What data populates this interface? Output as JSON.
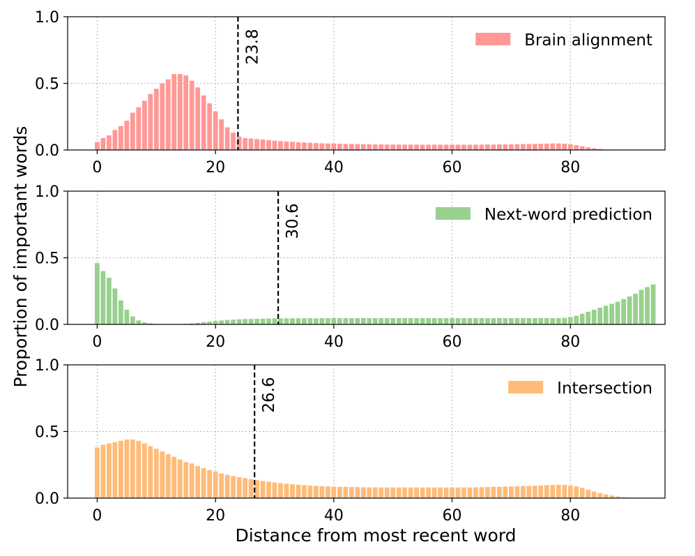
{
  "figure": {
    "ylabel": "Proportion of important words",
    "xlabel": "Distance from most recent word"
  },
  "chart_data": [
    {
      "type": "bar",
      "legend": "Brain alignment",
      "legend_position": "top-right",
      "color": "#ff9896",
      "grid": true,
      "xlim": [
        -5,
        96
      ],
      "ylim": [
        0,
        1
      ],
      "xticks": [
        0,
        20,
        40,
        60,
        80
      ],
      "yticks": [
        "0.0",
        "0.5",
        "1.0"
      ],
      "vline": {
        "x": 23.8,
        "label": "23.8"
      },
      "x": [
        0,
        1,
        2,
        3,
        4,
        5,
        6,
        7,
        8,
        9,
        10,
        11,
        12,
        13,
        14,
        15,
        16,
        17,
        18,
        19,
        20,
        21,
        22,
        23,
        24,
        25,
        26,
        27,
        28,
        29,
        30,
        31,
        32,
        33,
        34,
        35,
        36,
        37,
        38,
        39,
        40,
        41,
        42,
        43,
        44,
        45,
        46,
        47,
        48,
        49,
        50,
        51,
        52,
        53,
        54,
        55,
        56,
        57,
        58,
        59,
        60,
        61,
        62,
        63,
        64,
        65,
        66,
        67,
        68,
        69,
        70,
        71,
        72,
        73,
        74,
        75,
        76,
        77,
        78,
        79,
        80,
        81,
        82,
        83,
        84,
        85,
        86,
        87,
        88,
        89,
        90,
        91,
        92,
        93,
        94
      ],
      "values": [
        0.06,
        0.09,
        0.11,
        0.15,
        0.18,
        0.22,
        0.28,
        0.32,
        0.37,
        0.42,
        0.46,
        0.5,
        0.53,
        0.57,
        0.57,
        0.56,
        0.52,
        0.47,
        0.41,
        0.35,
        0.29,
        0.23,
        0.17,
        0.13,
        0.1,
        0.09,
        0.086,
        0.082,
        0.078,
        0.074,
        0.07,
        0.067,
        0.064,
        0.061,
        0.058,
        0.056,
        0.054,
        0.052,
        0.05,
        0.049,
        0.048,
        0.047,
        0.046,
        0.045,
        0.044,
        0.043,
        0.043,
        0.042,
        0.042,
        0.041,
        0.041,
        0.041,
        0.04,
        0.04,
        0.04,
        0.04,
        0.04,
        0.04,
        0.04,
        0.04,
        0.04,
        0.04,
        0.04,
        0.04,
        0.04,
        0.04,
        0.041,
        0.041,
        0.042,
        0.042,
        0.043,
        0.043,
        0.044,
        0.045,
        0.046,
        0.047,
        0.048,
        0.049,
        0.049,
        0.047,
        0.043,
        0.036,
        0.028,
        0.02,
        0.013,
        0.008,
        0.004,
        0.002,
        0.001,
        0,
        0,
        0,
        0,
        0,
        0
      ]
    },
    {
      "type": "bar",
      "legend": "Next-word prediction",
      "legend_position": "top-right",
      "color": "#98d08e",
      "grid": true,
      "xlim": [
        -5,
        96
      ],
      "ylim": [
        0,
        1
      ],
      "xticks": [
        0,
        20,
        40,
        60,
        80
      ],
      "yticks": [
        "0.0",
        "0.5",
        "1.0"
      ],
      "vline": {
        "x": 30.6,
        "label": "30.6"
      },
      "x": [
        0,
        1,
        2,
        3,
        4,
        5,
        6,
        7,
        8,
        9,
        10,
        11,
        12,
        13,
        14,
        15,
        16,
        17,
        18,
        19,
        20,
        21,
        22,
        23,
        24,
        25,
        26,
        27,
        28,
        29,
        30,
        31,
        32,
        33,
        34,
        35,
        36,
        37,
        38,
        39,
        40,
        41,
        42,
        43,
        44,
        45,
        46,
        47,
        48,
        49,
        50,
        51,
        52,
        53,
        54,
        55,
        56,
        57,
        58,
        59,
        60,
        61,
        62,
        63,
        64,
        65,
        66,
        67,
        68,
        69,
        70,
        71,
        72,
        73,
        74,
        75,
        76,
        77,
        78,
        79,
        80,
        81,
        82,
        83,
        84,
        85,
        86,
        87,
        88,
        89,
        90,
        91,
        92,
        93,
        94
      ],
      "values": [
        0.46,
        0.4,
        0.35,
        0.27,
        0.18,
        0.11,
        0.06,
        0.03,
        0.015,
        0.008,
        0.004,
        0.002,
        0.001,
        0.001,
        0.002,
        0.004,
        0.007,
        0.011,
        0.016,
        0.021,
        0.026,
        0.03,
        0.033,
        0.036,
        0.038,
        0.04,
        0.041,
        0.042,
        0.043,
        0.044,
        0.045,
        0.045,
        0.045,
        0.046,
        0.046,
        0.046,
        0.046,
        0.046,
        0.047,
        0.047,
        0.047,
        0.047,
        0.047,
        0.047,
        0.047,
        0.047,
        0.047,
        0.047,
        0.047,
        0.047,
        0.047,
        0.047,
        0.047,
        0.047,
        0.047,
        0.047,
        0.047,
        0.047,
        0.047,
        0.047,
        0.047,
        0.047,
        0.047,
        0.047,
        0.047,
        0.047,
        0.047,
        0.047,
        0.047,
        0.047,
        0.047,
        0.047,
        0.047,
        0.047,
        0.047,
        0.047,
        0.047,
        0.047,
        0.047,
        0.049,
        0.055,
        0.065,
        0.08,
        0.095,
        0.11,
        0.125,
        0.14,
        0.155,
        0.17,
        0.19,
        0.21,
        0.23,
        0.26,
        0.28,
        0.3
      ]
    },
    {
      "type": "bar",
      "legend": "Intersection",
      "legend_position": "top-right",
      "color": "#ffbb78",
      "grid": true,
      "xlim": [
        -5,
        96
      ],
      "ylim": [
        0,
        1
      ],
      "xticks": [
        0,
        20,
        40,
        60,
        80
      ],
      "yticks": [
        "0.0",
        "0.5",
        "1.0"
      ],
      "vline": {
        "x": 26.6,
        "label": "26.6"
      },
      "x": [
        0,
        1,
        2,
        3,
        4,
        5,
        6,
        7,
        8,
        9,
        10,
        11,
        12,
        13,
        14,
        15,
        16,
        17,
        18,
        19,
        20,
        21,
        22,
        23,
        24,
        25,
        26,
        27,
        28,
        29,
        30,
        31,
        32,
        33,
        34,
        35,
        36,
        37,
        38,
        39,
        40,
        41,
        42,
        43,
        44,
        45,
        46,
        47,
        48,
        49,
        50,
        51,
        52,
        53,
        54,
        55,
        56,
        57,
        58,
        59,
        60,
        61,
        62,
        63,
        64,
        65,
        66,
        67,
        68,
        69,
        70,
        71,
        72,
        73,
        74,
        75,
        76,
        77,
        78,
        79,
        80,
        81,
        82,
        83,
        84,
        85,
        86,
        87,
        88,
        89,
        90,
        91,
        92,
        93,
        94
      ],
      "values": [
        0.38,
        0.4,
        0.41,
        0.42,
        0.43,
        0.44,
        0.44,
        0.43,
        0.41,
        0.39,
        0.37,
        0.35,
        0.33,
        0.31,
        0.29,
        0.27,
        0.26,
        0.24,
        0.225,
        0.21,
        0.2,
        0.185,
        0.175,
        0.165,
        0.157,
        0.15,
        0.142,
        0.135,
        0.128,
        0.122,
        0.117,
        0.112,
        0.108,
        0.104,
        0.1,
        0.097,
        0.094,
        0.092,
        0.09,
        0.088,
        0.086,
        0.085,
        0.084,
        0.083,
        0.082,
        0.081,
        0.081,
        0.08,
        0.08,
        0.08,
        0.08,
        0.08,
        0.08,
        0.08,
        0.08,
        0.08,
        0.08,
        0.08,
        0.08,
        0.08,
        0.08,
        0.08,
        0.08,
        0.08,
        0.081,
        0.082,
        0.083,
        0.084,
        0.085,
        0.086,
        0.087,
        0.088,
        0.09,
        0.091,
        0.093,
        0.095,
        0.097,
        0.099,
        0.1,
        0.099,
        0.095,
        0.087,
        0.076,
        0.063,
        0.05,
        0.038,
        0.028,
        0.019,
        0.012,
        0.007,
        0.004,
        0.002,
        0.001,
        0,
        0
      ]
    }
  ]
}
